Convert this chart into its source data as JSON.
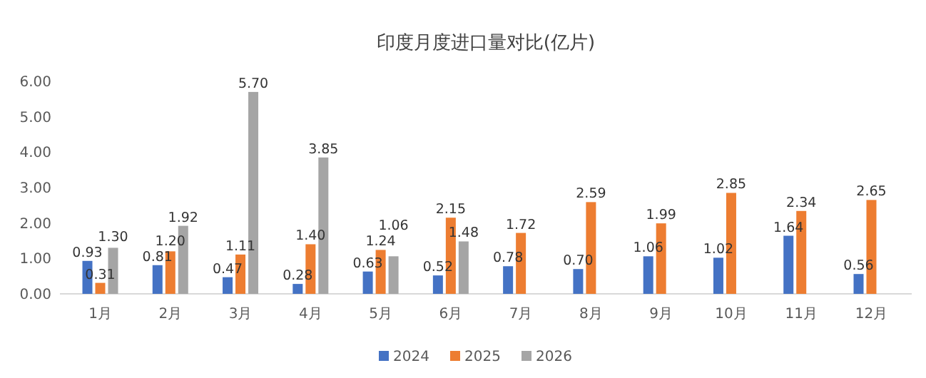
{
  "chart_data": {
    "type": "bar",
    "title": "印度月度进口量对比(亿片)",
    "categories": [
      "1月",
      "2月",
      "3月",
      "4月",
      "5月",
      "6月",
      "7月",
      "8月",
      "9月",
      "10月",
      "11月",
      "12月"
    ],
    "series": [
      {
        "name": "2024",
        "color": "#4472c4",
        "values": [
          0.93,
          0.81,
          0.47,
          0.28,
          0.63,
          0.52,
          0.78,
          0.7,
          1.06,
          1.02,
          1.64,
          0.56
        ],
        "value_labels": [
          "0.93",
          "0.81",
          "0.47",
          "0.28",
          "0.63",
          "0.52",
          "0.78",
          "0.70",
          "1.06",
          "1.02",
          "1.64",
          "0.56"
        ]
      },
      {
        "name": "2025",
        "color": "#ed7d31",
        "values": [
          0.31,
          1.2,
          1.11,
          1.4,
          1.24,
          2.15,
          1.72,
          2.59,
          1.99,
          2.85,
          2.34,
          2.65
        ],
        "value_labels": [
          "0.31",
          "1.20",
          "1.11",
          "1.40",
          "1.24",
          "2.15",
          "1.72",
          "2.59",
          "1.99",
          "2.85",
          "2.34",
          "2.65"
        ]
      },
      {
        "name": "2026",
        "color": "#a5a5a5",
        "values": [
          1.3,
          1.92,
          5.7,
          3.85,
          1.06,
          1.48,
          null,
          null,
          null,
          null,
          null,
          null
        ],
        "value_labels": [
          "1.30",
          "1.92",
          "5.70",
          "3.85",
          "1.06",
          "1.48",
          null,
          null,
          null,
          null,
          null,
          null
        ]
      }
    ],
    "ylim": [
      0,
      6
    ],
    "yticks": [
      {
        "value": 0,
        "label": "0.00"
      },
      {
        "value": 1,
        "label": "1.00"
      },
      {
        "value": 2,
        "label": "2.00"
      },
      {
        "value": 3,
        "label": "3.00"
      },
      {
        "value": 4,
        "label": "4.00"
      },
      {
        "value": 5,
        "label": "5.00"
      },
      {
        "value": 6,
        "label": "6.00"
      }
    ],
    "grid": false,
    "legend": "bottom"
  }
}
